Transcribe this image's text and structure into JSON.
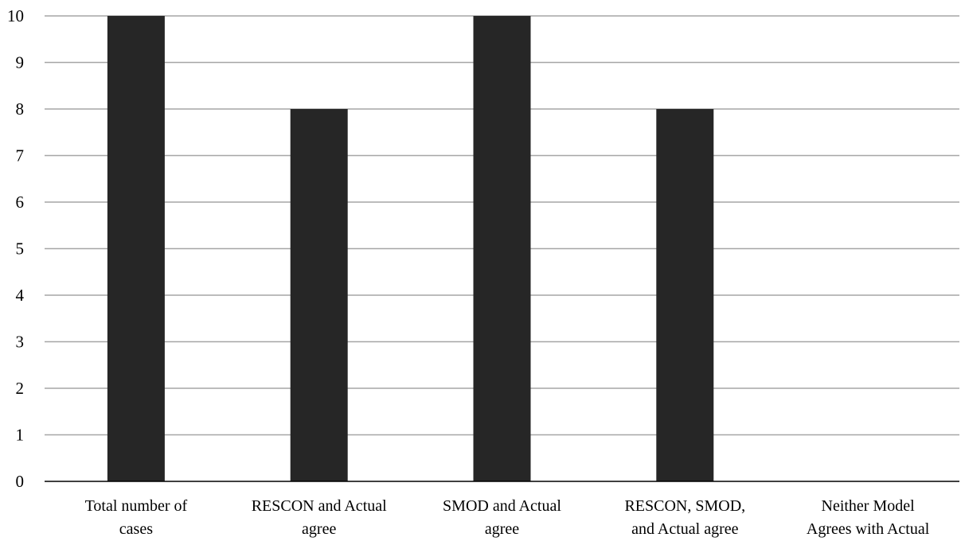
{
  "chart_data": {
    "type": "bar",
    "title": "",
    "xlabel": "",
    "ylabel": "",
    "categories": [
      [
        "Total number of",
        "cases"
      ],
      [
        "RESCON and Actual",
        "agree"
      ],
      [
        "SMOD and Actual",
        "agree"
      ],
      [
        "RESCON, SMOD,",
        "and Actual agree"
      ],
      [
        "Neither Model",
        "Agrees with Actual"
      ]
    ],
    "values": [
      10,
      8,
      10,
      8,
      0
    ],
    "ylim": [
      0,
      10
    ],
    "yticks": [
      "0",
      "1",
      "2",
      "3",
      "4",
      "5",
      "6",
      "7",
      "8",
      "9",
      "10"
    ],
    "grid": true,
    "legend": "none",
    "colors": {
      "bar": "#262626",
      "grid": "#a6a6a6",
      "axis": "#000000"
    }
  }
}
